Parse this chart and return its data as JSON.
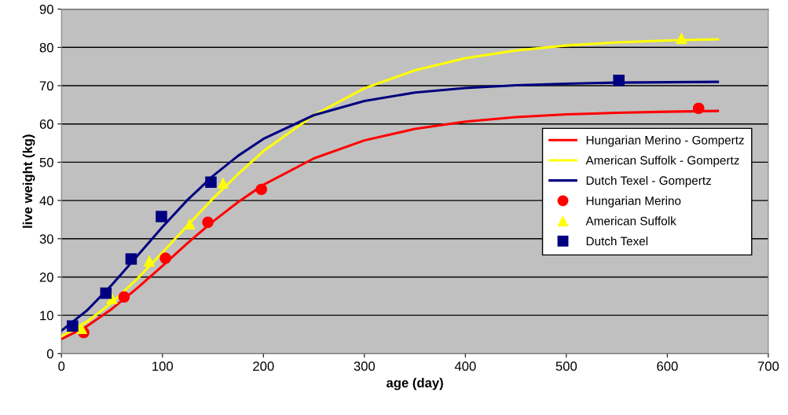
{
  "chart_data": {
    "type": "line",
    "xlabel": "age (day)",
    "ylabel": "live weight (kg)",
    "xlim": [
      0,
      700
    ],
    "xticks": [
      0,
      100,
      200,
      300,
      400,
      500,
      600,
      700
    ],
    "ylim": [
      0,
      90
    ],
    "yticks": [
      0,
      10,
      20,
      30,
      40,
      50,
      60,
      70,
      80,
      90
    ],
    "grid": "y",
    "legend": "right",
    "series": [
      {
        "name": "Hungarian Merino - Gompertz",
        "color": "#ff0000",
        "marker": "none",
        "line_style": "solid",
        "x": [
          0,
          25,
          50,
          75,
          100,
          125,
          150,
          175,
          200,
          250,
          300,
          350,
          400,
          450,
          500,
          550,
          600,
          650
        ],
        "values": [
          3.8,
          7.1,
          11.7,
          17.1,
          22.9,
          28.9,
          34.5,
          39.6,
          44.1,
          51.0,
          55.7,
          58.7,
          60.6,
          61.8,
          62.5,
          62.9,
          63.2,
          63.4
        ]
      },
      {
        "name": "American Suffolk - Gompertz",
        "color": "#ffff00",
        "marker": "none",
        "line_style": "solid",
        "x": [
          0,
          25,
          50,
          75,
          100,
          125,
          150,
          175,
          200,
          250,
          300,
          350,
          400,
          450,
          500,
          550,
          600,
          650
        ],
        "values": [
          4.5,
          8.3,
          13.3,
          19.5,
          26.4,
          33.5,
          40.5,
          46.9,
          52.9,
          62.3,
          69.3,
          74.0,
          77.2,
          79.2,
          80.5,
          81.3,
          81.8,
          82.1
        ]
      },
      {
        "name": "Dutch Texel - Gompertz",
        "color": "#000080",
        "marker": "none",
        "line_style": "solid",
        "x": [
          0,
          25,
          50,
          75,
          100,
          125,
          150,
          175,
          200,
          250,
          300,
          350,
          400,
          450,
          500,
          550,
          600,
          650
        ],
        "values": [
          6.0,
          11.2,
          18.0,
          25.5,
          33.1,
          40.2,
          46.4,
          51.7,
          56.1,
          62.3,
          66.0,
          68.2,
          69.4,
          70.1,
          70.5,
          70.8,
          70.9,
          71.0
        ]
      },
      {
        "name": "Hungarian Merino",
        "type": "scatter",
        "color": "#ff0000",
        "marker": "circle",
        "x": [
          22,
          62,
          103,
          145,
          198,
          631
        ],
        "values": [
          5.5,
          14.8,
          24.9,
          34.3,
          42.9,
          64.1
        ]
      },
      {
        "name": "American Suffolk",
        "type": "scatter",
        "color": "#ffff00",
        "marker": "triangle",
        "x": [
          20,
          50,
          87,
          127,
          160,
          614
        ],
        "values": [
          6.6,
          14.4,
          24.2,
          33.9,
          44.6,
          82.4
        ]
      },
      {
        "name": "Dutch Texel",
        "type": "scatter",
        "color": "#000080",
        "marker": "square",
        "x": [
          11,
          44,
          69,
          99,
          148,
          552
        ],
        "values": [
          7.2,
          15.8,
          24.7,
          35.8,
          44.8,
          71.4
        ]
      }
    ]
  }
}
